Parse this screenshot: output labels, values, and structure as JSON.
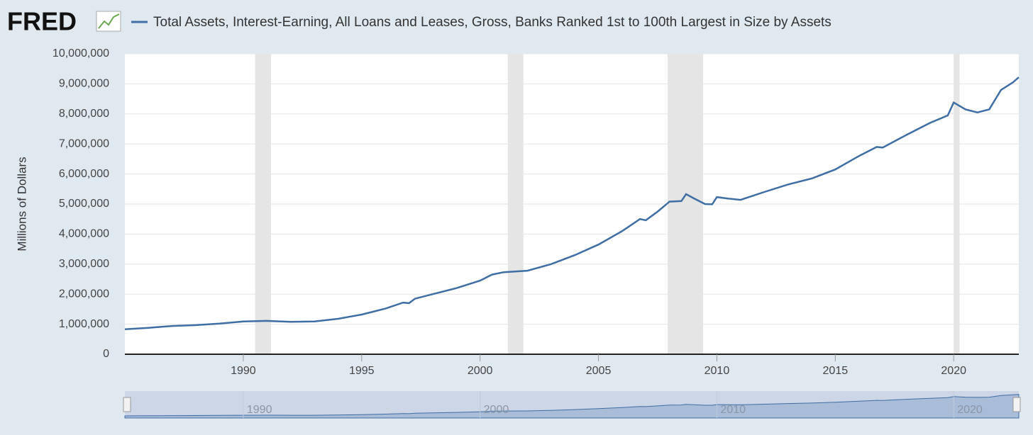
{
  "logo": "FRED",
  "chart_data": {
    "type": "line",
    "y_label": "Millions of Dollars",
    "series": [
      {
        "name": "Total Assets, Interest-Earning, All Loans and Leases, Gross, Banks Ranked 1st to 100th Largest in Size by Assets",
        "color": "#3f6ea5",
        "values": [
          830000,
          880000,
          910000,
          940000,
          970000,
          1020000,
          1090000,
          1110000,
          1080000,
          1090000,
          1180000,
          1320000,
          1520000,
          1720000,
          1700000,
          1850000,
          2000000,
          2200000,
          2450000,
          2650000,
          2730000,
          2780000,
          3000000,
          3300000,
          3650000,
          4100000,
          4500000,
          4460000,
          4750000,
          5080000,
          5100000,
          5330000,
          5200000,
          5000000,
          4990000,
          5230000,
          5180000,
          5140000,
          5400000,
          5650000,
          5850000,
          6150000,
          6600000,
          6900000,
          6880000,
          7300000,
          7700000,
          7950000,
          8380000,
          8150000,
          8050000,
          8150000,
          8800000,
          9050000,
          9220000
        ]
      }
    ],
    "x": [
      1985.0,
      1986.0,
      1986.5,
      1987.0,
      1988.0,
      1989.0,
      1990.0,
      1991.0,
      1992.0,
      1993.0,
      1994.0,
      1995.0,
      1996.0,
      1996.75,
      1997.0,
      1997.25,
      1998.0,
      1999.0,
      2000.0,
      2000.5,
      2001.0,
      2002.0,
      2003.0,
      2004.0,
      2005.0,
      2006.0,
      2006.75,
      2007.0,
      2007.5,
      2008.0,
      2008.5,
      2008.7,
      2009.0,
      2009.5,
      2009.8,
      2010.0,
      2010.5,
      2011.0,
      2012.0,
      2013.0,
      2014.0,
      2015.0,
      2016.0,
      2016.75,
      2017.0,
      2018.0,
      2019.0,
      2019.75,
      2020.0,
      2020.5,
      2021.0,
      2021.5,
      2022.0,
      2022.5,
      2022.75
    ],
    "recessions": [
      [
        1990.5,
        1991.17
      ],
      [
        2001.17,
        2001.83
      ],
      [
        2007.92,
        2009.42
      ],
      [
        2020.0,
        2020.25
      ]
    ],
    "xlim": [
      1985.0,
      2022.75
    ],
    "xticks": [
      1990,
      1995,
      2000,
      2005,
      2010,
      2015,
      2020
    ],
    "ylim": [
      0,
      10000000
    ],
    "yticks": [
      0,
      {
        "value": 1000000,
        "label": "1,000,000"
      },
      {
        "value": 2000000,
        "label": "2,000,000"
      },
      {
        "value": 3000000,
        "label": "3,000,000"
      },
      {
        "value": 4000000,
        "label": "4,000,000"
      },
      {
        "value": 5000000,
        "label": "5,000,000"
      },
      {
        "value": 6000000,
        "label": "6,000,000"
      },
      {
        "value": 7000000,
        "label": "7,000,000"
      },
      {
        "value": 8000000,
        "label": "8,000,000"
      },
      {
        "value": 9000000,
        "label": "9,000,000"
      },
      {
        "value": 10000000,
        "label": "10,000,000"
      }
    ],
    "navigator_xticks": [
      1990,
      2000,
      2010,
      2020
    ],
    "grid": true
  }
}
